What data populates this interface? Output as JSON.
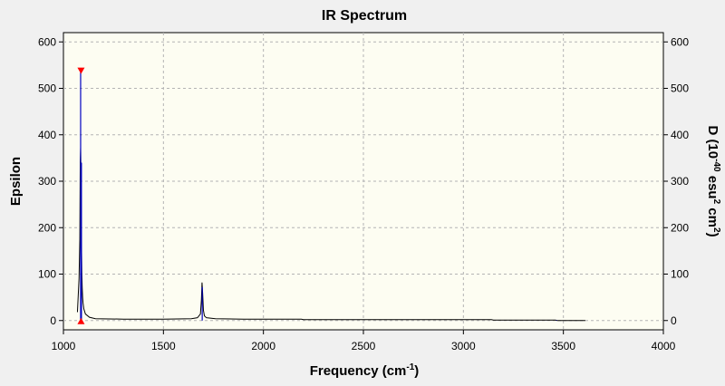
{
  "chart_data": {
    "type": "line",
    "title": "IR Spectrum",
    "xlabel": "Frequency (cm",
    "xlabel_sup": "-1",
    "xlabel_tail": ")",
    "ylabel": "Epsilon",
    "y2label_parts": [
      "D (10",
      "-40",
      " esu",
      "2",
      " cm",
      "2",
      ")"
    ],
    "xlim": [
      1000,
      4000
    ],
    "ylim": [
      -20,
      620
    ],
    "y2lim": [
      -20,
      620
    ],
    "xticks": [
      1000,
      1500,
      2000,
      2500,
      3000,
      3500,
      4000
    ],
    "yticks": [
      0,
      100,
      200,
      300,
      400,
      500,
      600
    ],
    "y2ticks": [
      0,
      100,
      200,
      300,
      400,
      500,
      600
    ],
    "grid": true,
    "plot_background": "#fdfdf2",
    "grid_color": "#b4b4b4",
    "series": [
      {
        "color": "#000000",
        "x": [
          1070,
          1078,
          1082,
          1084,
          1086,
          1088,
          1090,
          1092,
          1094,
          1096,
          1098,
          1102,
          1110,
          1130,
          1160,
          1300,
          1500,
          1640,
          1670,
          1685,
          1690,
          1693,
          1696,
          1700,
          1705,
          1715,
          1760,
          1900,
          2190,
          2200,
          2600,
          3000,
          3140,
          3150,
          3400,
          3460,
          3470,
          3610
        ],
        "y": [
          18,
          90,
          175,
          340,
          372,
          300,
          170,
          100,
          70,
          50,
          38,
          25,
          14,
          7,
          4,
          3,
          3,
          4,
          6,
          14,
          45,
          82,
          60,
          22,
          10,
          6,
          4,
          3,
          3,
          2,
          2,
          2,
          2,
          1,
          1,
          1,
          0,
          0
        ]
      }
    ],
    "sticks": {
      "color": "#0000c0",
      "x": [
        1086,
        1090,
        1694,
        3466
      ],
      "y": [
        535,
        340,
        72,
        1
      ]
    },
    "markers": {
      "color": "#ff0000",
      "x": 1088,
      "top_y": 535,
      "bottom_y": 0
    }
  }
}
